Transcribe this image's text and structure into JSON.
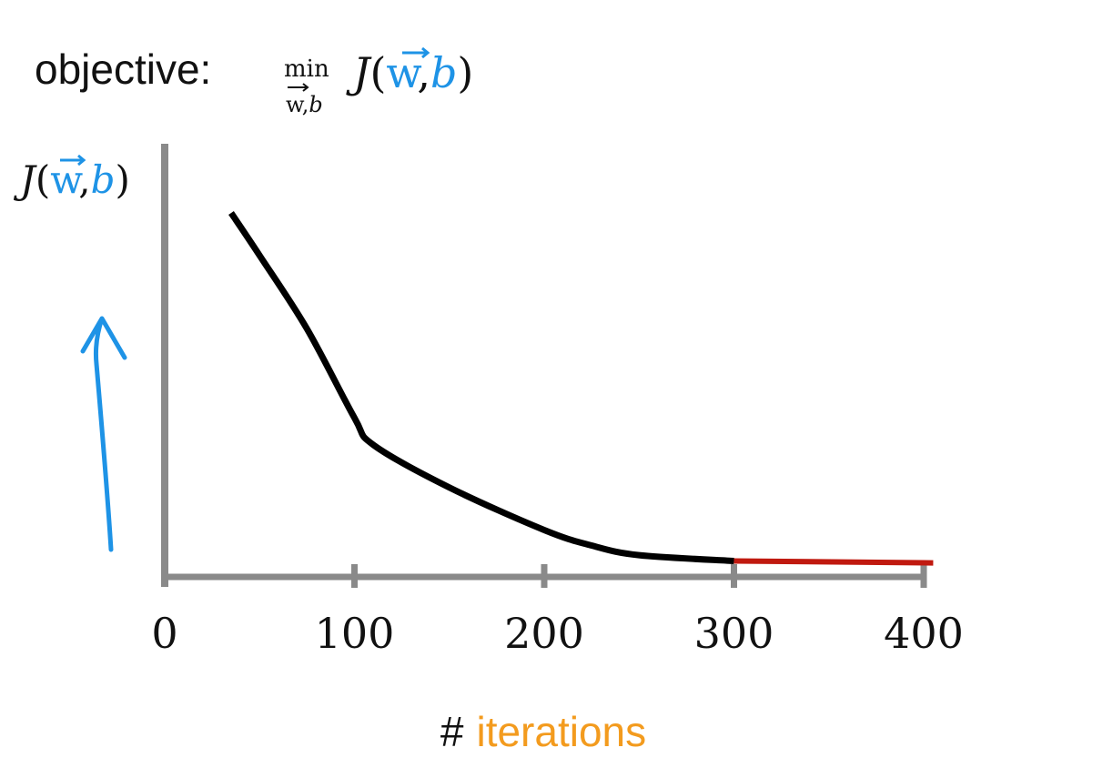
{
  "objective": {
    "label": "objective:",
    "op": "min",
    "op_sub_vec": "w",
    "op_sub_sep": ",",
    "op_sub_b": "b",
    "func": "J",
    "open": "(",
    "vec": "w",
    "sep": ",",
    "b": "b",
    "close": ")"
  },
  "ylabel": {
    "func": "J",
    "open": "(",
    "vec": "w",
    "sep": ",",
    "b": "b",
    "close": ")"
  },
  "xlabel": {
    "hash": "#",
    "word": "iterations"
  },
  "colors": {
    "axis": "#8a8a8a",
    "curve": "#000000",
    "tail": "#c0190f",
    "blue": "#1e93e6",
    "orange": "#f39b1e",
    "text": "#111111"
  },
  "chart_data": {
    "type": "line",
    "xlim": [
      0,
      400
    ],
    "xticks": [
      0,
      100,
      200,
      300,
      400
    ],
    "xtick_labels": [
      "0",
      "100",
      "200",
      "300",
      "400"
    ],
    "series": [
      {
        "x": [
          35,
          50,
          75,
          100,
          110,
          150,
          200,
          225,
          250,
          300
        ],
        "y": [
          0.92,
          0.81,
          0.62,
          0.39,
          0.32,
          0.21,
          0.1,
          0.06,
          0.035,
          0.02
        ],
        "color": "#000000"
      },
      {
        "x": [
          300,
          405
        ],
        "y": [
          0.02,
          0.015
        ],
        "color": "#c0190f"
      }
    ]
  }
}
